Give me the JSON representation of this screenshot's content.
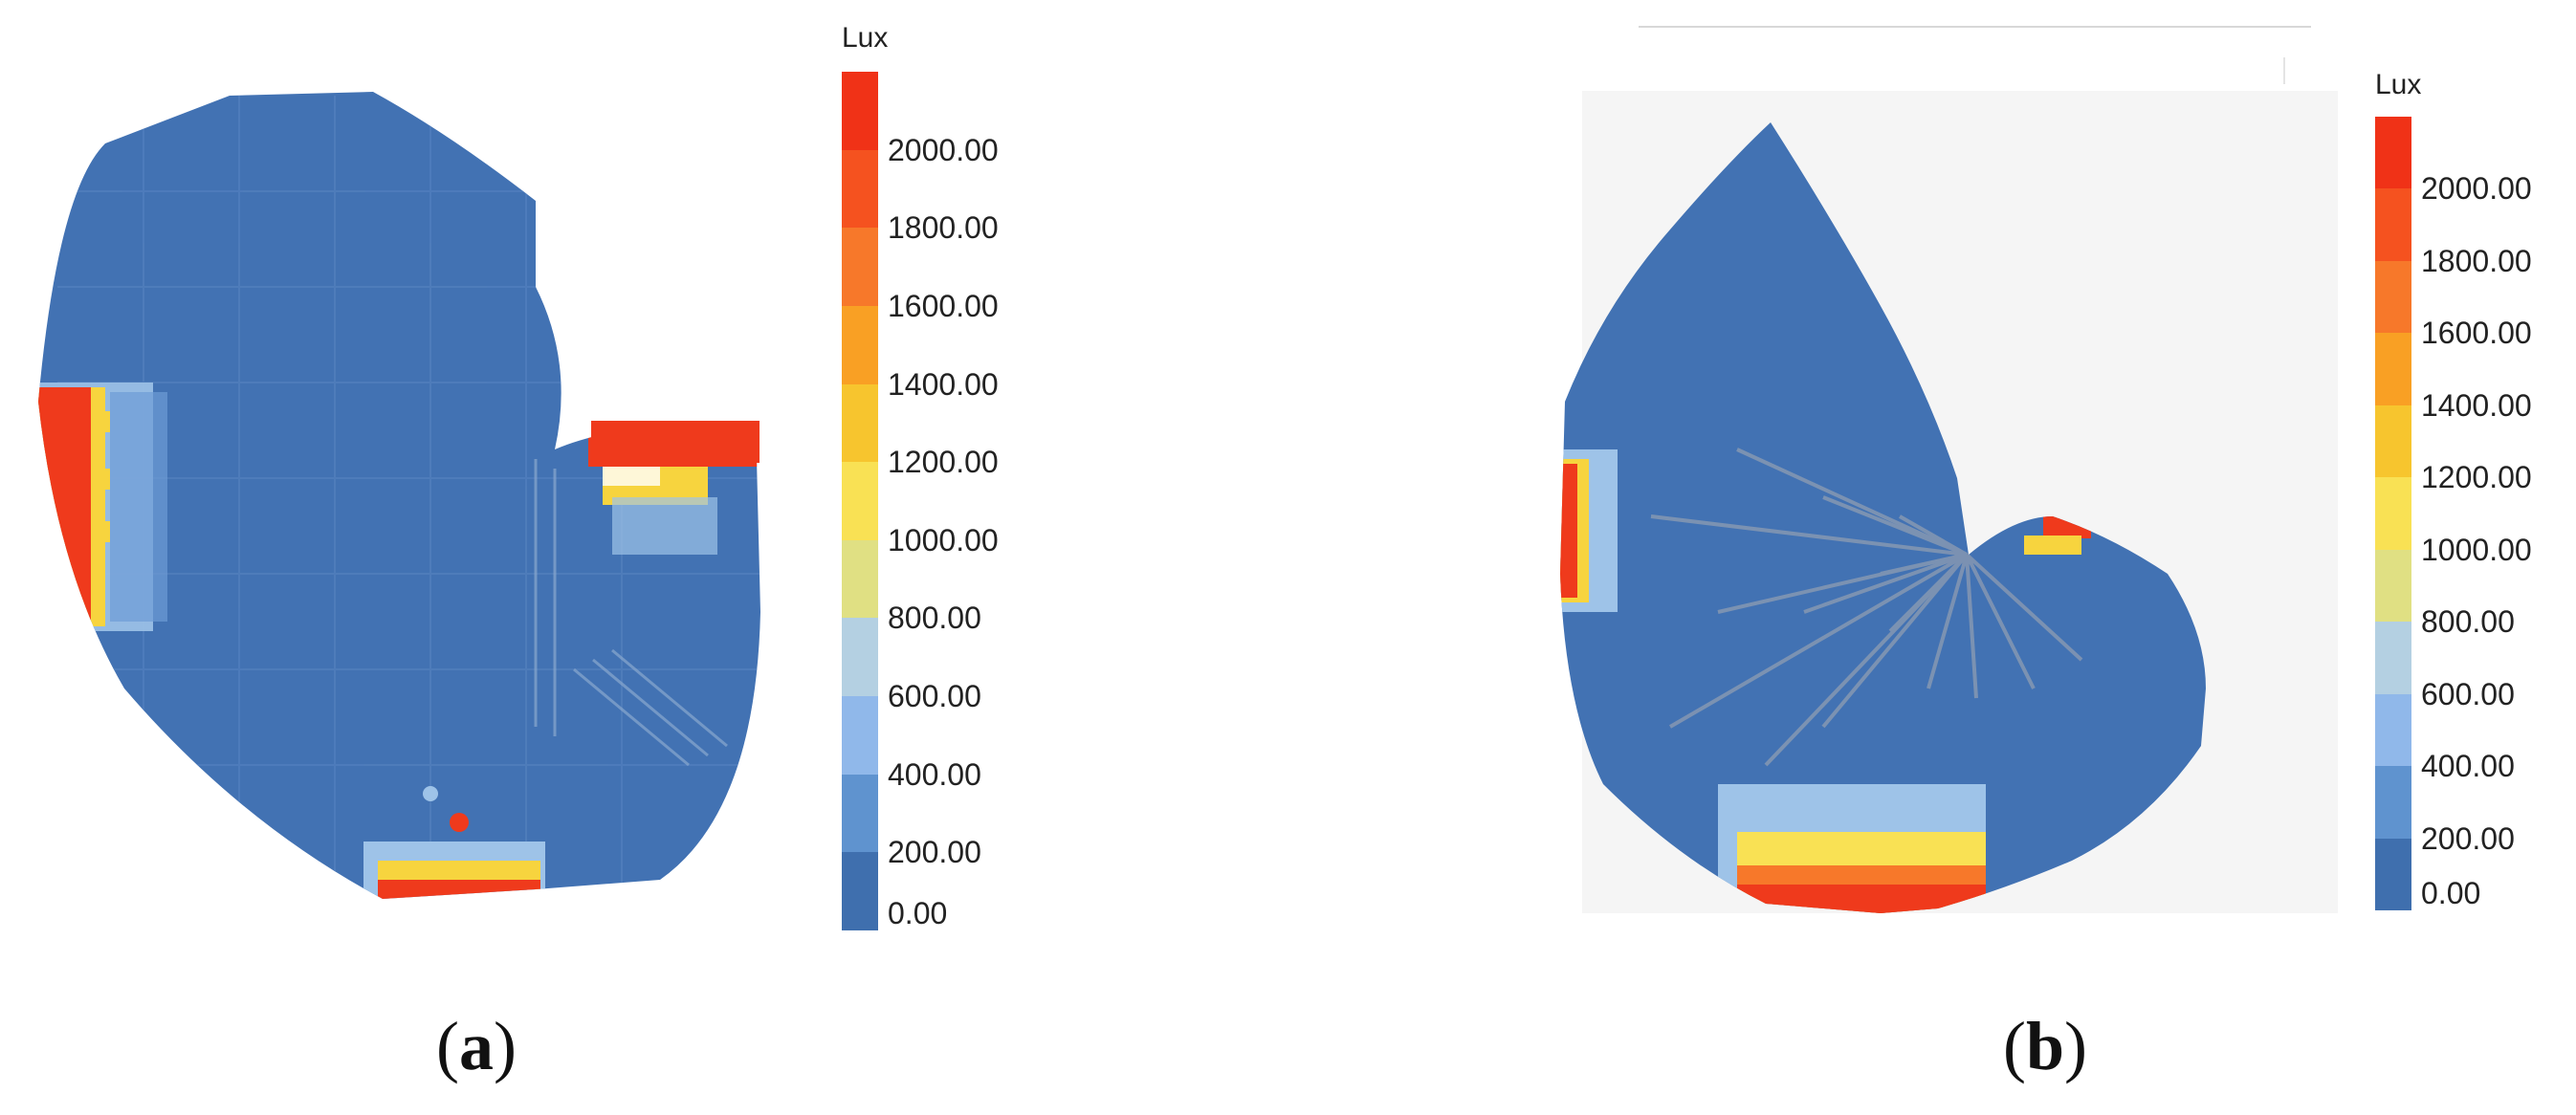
{
  "panels": [
    {
      "id": "a",
      "caption_letter": "a",
      "colorbar_unit": "Lux"
    },
    {
      "id": "b",
      "caption_letter": "b",
      "colorbar_unit": "Lux"
    }
  ],
  "colorbar": {
    "labels": [
      "2000.00",
      "1800.00",
      "1600.00",
      "1400.00",
      "1200.00",
      "1000.00",
      "800.00",
      "600.00",
      "400.00",
      "200.00",
      "0.00"
    ],
    "colors": [
      "#f03217",
      "#f5521f",
      "#f7782a",
      "#f9a024",
      "#f7c52e",
      "#f9e154",
      "#e0e083",
      "#b4d0e2",
      "#90b8ea",
      "#5f93cf",
      "#3f6fae"
    ]
  },
  "colors": {
    "floor_blue": "#4272b3",
    "hot_red": "#ef3a1c",
    "hot_yellow": "#f7d43e",
    "light_blue": "#9ec3e8",
    "panel_b_bg": "#f5f5f5"
  }
}
